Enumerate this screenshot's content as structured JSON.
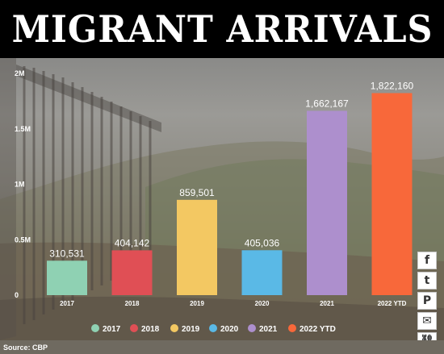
{
  "header": {
    "title": "MIGRANT ARRIVALS"
  },
  "chart_data": {
    "type": "bar",
    "categories": [
      "2017",
      "2018",
      "2019",
      "2020",
      "2021",
      "2022 YTD"
    ],
    "values": [
      310531,
      404142,
      859501,
      405036,
      1662167,
      1822160
    ],
    "data_labels": [
      "310,531",
      "404,142",
      "859,501",
      "405,036",
      "1,662,167",
      "1,822,160"
    ],
    "colors": [
      "#8fd1b3",
      "#e04f55",
      "#f3c862",
      "#5ab9e6",
      "#ad8fcd",
      "#f8683a"
    ],
    "ylim": [
      0,
      2000000
    ],
    "yticks": [
      0,
      500000,
      1000000,
      1500000,
      2000000
    ],
    "ytick_labels": [
      "0",
      "0.5M",
      "1M",
      "1.5M",
      "2M"
    ],
    "legend": [
      "2017",
      "2018",
      "2019",
      "2020",
      "2021",
      "2022 YTD"
    ],
    "legend_position": "bottom",
    "grid": false
  },
  "share": {
    "icons": [
      "facebook-icon",
      "twitter-icon",
      "pinterest-icon",
      "email-icon",
      "link-icon",
      "share-icon"
    ],
    "glyphs": [
      "f",
      "t",
      "P",
      "✉",
      "⛓",
      "≺"
    ]
  },
  "source": "Source: CBP"
}
